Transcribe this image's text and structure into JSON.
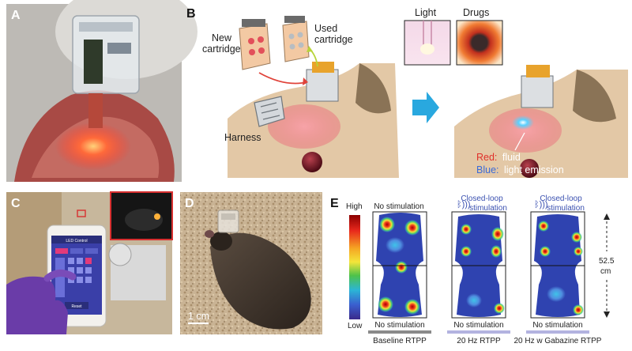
{
  "panels": {
    "a": {
      "letter": "A"
    },
    "b": {
      "letter": "B",
      "new_cartridge": [
        "New",
        "cartridge"
      ],
      "used_cartridge": [
        "Used",
        "cartridge"
      ],
      "harness": "Harness",
      "light": "Light",
      "drugs": "Drugs",
      "legend_red_key": "Red:",
      "legend_red_text": "fluid",
      "legend_blue_key": "Blue:",
      "legend_blue_text": "light emission"
    },
    "c": {
      "letter": "C",
      "app_title": "LED Control",
      "app_button": "Reset"
    },
    "d": {
      "letter": "D",
      "scale_label": "1 cm"
    },
    "e": {
      "letter": "E",
      "colorbar_high": "High",
      "colorbar_low": "Low",
      "dimension_label": [
        "52.5",
        "cm"
      ],
      "maps": [
        {
          "top_label": [
            "No stimulation"
          ],
          "bottom_label": "No stimulation",
          "caption": "Baseline RTPP",
          "closed_loop": false
        },
        {
          "top_label": [
            "Closed-loop",
            "stimulation"
          ],
          "bottom_label": "No stimulation",
          "caption": "20 Hz RTPP",
          "closed_loop": true
        },
        {
          "top_label": [
            "Closed-loop",
            "stimulation"
          ],
          "bottom_label": "No stimulation",
          "caption": "20 Hz w Gabazine RTPP",
          "closed_loop": true
        }
      ]
    }
  },
  "colors": {
    "arrow_blue": "#29a8df",
    "heat_low": "#2a3a9a",
    "heat_high": "#8b0000",
    "caption_bar_gray": "#8a8a8a",
    "caption_bar_lavender": "#b3b3e0",
    "closed_loop_text": "#3a50b0"
  }
}
